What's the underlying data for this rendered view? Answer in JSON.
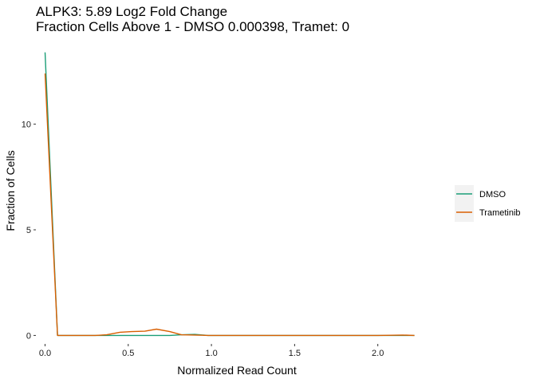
{
  "chart_data": {
    "type": "line",
    "title": "ALPK3: 5.89 Log2 Fold Change",
    "subtitle": "Fraction Cells Above 1 - DMSO 0.000398, Tramet: 0",
    "xlabel": "Normalized Read Count",
    "ylabel": "Fraction of Cells",
    "xlim": [
      -0.055,
      2.27
    ],
    "ylim": [
      -0.4,
      13.8
    ],
    "xticks": [
      0.0,
      0.5,
      1.0,
      1.5,
      2.0
    ],
    "xtick_labels": [
      "0.0",
      "0.5",
      "1.0",
      "1.5",
      "2.0"
    ],
    "yticks": [
      0,
      5,
      10
    ],
    "ytick_labels": [
      "0",
      "5",
      "10"
    ],
    "grid": false,
    "legend_position": "right",
    "series": [
      {
        "name": "DMSO",
        "color": "#1b9e77",
        "x": [
          0.0,
          0.075,
          0.15,
          0.3,
          0.45,
          0.6,
          0.75,
          0.82,
          0.9,
          0.98,
          1.1,
          1.5,
          2.0,
          2.22
        ],
        "y": [
          13.4,
          0.0,
          0.0,
          0.0,
          0.0,
          0.0,
          0.0,
          0.03,
          0.05,
          0.0,
          0.0,
          0.0,
          0.0,
          0.0
        ]
      },
      {
        "name": "Trametinib",
        "color": "#d95f02",
        "x": [
          0.0,
          0.075,
          0.15,
          0.3,
          0.37,
          0.45,
          0.52,
          0.6,
          0.67,
          0.75,
          0.82,
          0.9,
          0.98,
          1.1,
          1.5,
          2.0,
          2.15,
          2.22
        ],
        "y": [
          12.4,
          0.0,
          0.0,
          0.0,
          0.03,
          0.15,
          0.18,
          0.2,
          0.3,
          0.18,
          0.03,
          0.02,
          0.0,
          0.0,
          0.0,
          0.0,
          0.02,
          0.0
        ]
      }
    ]
  }
}
